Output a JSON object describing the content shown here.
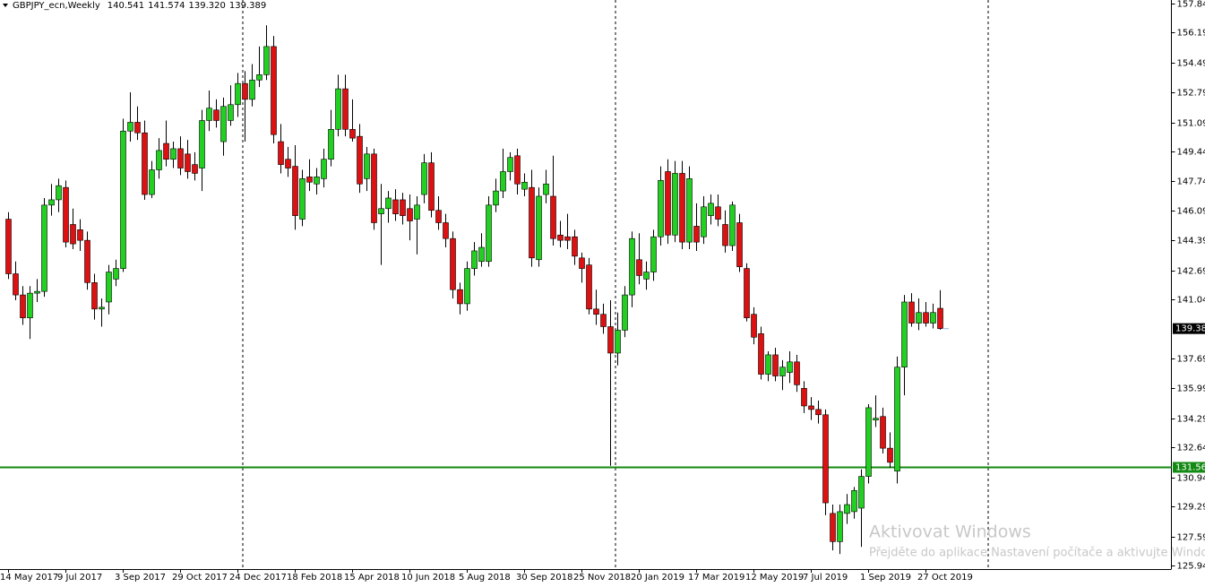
{
  "chart_data": {
    "type": "candlestick",
    "title": "GBPJPY_ecn,Weekly",
    "header_values": [
      "140.541",
      "141.574",
      "139.320",
      "139.389"
    ],
    "categories": [
      "14 May 2017",
      null,
      null,
      null,
      null,
      null,
      null,
      null,
      "9 Jul 2017",
      null,
      null,
      null,
      null,
      null,
      null,
      null,
      "3 Sep 2017",
      null,
      null,
      null,
      null,
      null,
      null,
      null,
      "29 Oct 2017",
      null,
      null,
      null,
      null,
      null,
      null,
      null,
      "24 Dec 2017",
      null,
      null,
      null,
      null,
      null,
      null,
      null,
      "18 Feb 2018",
      null,
      null,
      null,
      null,
      null,
      null,
      null,
      "15 Apr 2018",
      null,
      null,
      null,
      null,
      null,
      null,
      null,
      "10 Jun 2018",
      null,
      null,
      null,
      null,
      null,
      null,
      null,
      "5 Aug 2018",
      null,
      null,
      null,
      null,
      null,
      null,
      null,
      "30 Sep 2018",
      null,
      null,
      null,
      null,
      null,
      null,
      null,
      "25 Nov 2018",
      null,
      null,
      null,
      null,
      null,
      null,
      null,
      "20 Jan 2019",
      null,
      null,
      null,
      null,
      null,
      null,
      null,
      "17 Mar 2019",
      null,
      null,
      null,
      null,
      null,
      null,
      null,
      "12 May 2019",
      null,
      null,
      null,
      null,
      null,
      null,
      null,
      "7 Jul 2019",
      null,
      null,
      null,
      null,
      null,
      null,
      null,
      "1 Sep 2019",
      null,
      null,
      null,
      null,
      null,
      null,
      null,
      "27 Oct 2019",
      null,
      null
    ],
    "values": [
      [
        145.6,
        146.0,
        142.2,
        142.5
      ],
      [
        142.5,
        143.2,
        141.0,
        141.3
      ],
      [
        141.3,
        141.8,
        139.6,
        140.0
      ],
      [
        140.0,
        141.8,
        138.8,
        141.4
      ],
      [
        141.4,
        142.2,
        140.9,
        141.5
      ],
      [
        141.5,
        146.8,
        141.2,
        146.4
      ],
      [
        146.4,
        147.6,
        145.8,
        146.7
      ],
      [
        146.7,
        147.9,
        146.0,
        147.5
      ],
      [
        147.4,
        147.8,
        144.0,
        144.3
      ],
      [
        145.3,
        146.2,
        143.9,
        144.2
      ],
      [
        145.0,
        145.6,
        143.8,
        144.4
      ],
      [
        144.4,
        144.9,
        141.6,
        142.0
      ],
      [
        142.0,
        142.5,
        139.9,
        140.5
      ],
      [
        140.5,
        141.1,
        139.5,
        140.6
      ],
      [
        140.9,
        143.0,
        140.2,
        142.6
      ],
      [
        142.2,
        143.3,
        141.8,
        142.8
      ],
      [
        142.8,
        151.3,
        142.6,
        150.6
      ],
      [
        150.6,
        152.8,
        150.0,
        151.1
      ],
      [
        151.1,
        152.0,
        150.1,
        150.5
      ],
      [
        150.5,
        151.2,
        146.7,
        147.0
      ],
      [
        147.0,
        148.9,
        146.8,
        148.4
      ],
      [
        148.4,
        150.2,
        147.9,
        149.5
      ],
      [
        149.9,
        151.2,
        148.6,
        149.0
      ],
      [
        149.0,
        150.0,
        148.5,
        149.6
      ],
      [
        149.6,
        150.3,
        148.1,
        148.5
      ],
      [
        149.3,
        150.1,
        147.9,
        148.3
      ],
      [
        148.7,
        149.4,
        147.8,
        148.2
      ],
      [
        148.5,
        151.8,
        147.2,
        151.2
      ],
      [
        151.2,
        152.9,
        150.6,
        151.9
      ],
      [
        151.8,
        152.4,
        150.8,
        151.2
      ],
      [
        150.0,
        152.5,
        149.2,
        152.0
      ],
      [
        151.2,
        153.2,
        150.9,
        152.1
      ],
      [
        152.1,
        153.9,
        151.4,
        153.3
      ],
      [
        153.3,
        154.0,
        150.0,
        152.4
      ],
      [
        152.4,
        154.4,
        152.0,
        153.5
      ],
      [
        153.5,
        155.4,
        153.1,
        153.8
      ],
      [
        153.8,
        156.6,
        153.5,
        155.4
      ],
      [
        155.4,
        156.0,
        149.9,
        150.4
      ],
      [
        150.0,
        151.0,
        148.2,
        148.7
      ],
      [
        149.0,
        149.7,
        148.0,
        148.5
      ],
      [
        148.6,
        149.8,
        145.0,
        145.8
      ],
      [
        145.6,
        148.4,
        145.2,
        147.9
      ],
      [
        148.0,
        149.0,
        147.2,
        147.7
      ],
      [
        147.6,
        148.5,
        147.0,
        148.0
      ],
      [
        147.9,
        149.6,
        147.4,
        149.0
      ],
      [
        149.0,
        151.8,
        148.6,
        150.7
      ],
      [
        150.7,
        153.8,
        150.3,
        153.0
      ],
      [
        153.0,
        153.8,
        150.3,
        150.7
      ],
      [
        150.7,
        152.4,
        150.0,
        150.2
      ],
      [
        150.3,
        151.0,
        147.1,
        147.6
      ],
      [
        147.9,
        149.7,
        147.2,
        149.3
      ],
      [
        149.3,
        149.6,
        145.0,
        145.4
      ],
      [
        145.9,
        147.6,
        143.0,
        146.2
      ],
      [
        146.2,
        147.2,
        145.4,
        146.8
      ],
      [
        146.7,
        147.3,
        145.5,
        145.9
      ],
      [
        146.7,
        147.1,
        145.3,
        145.8
      ],
      [
        146.2,
        147.0,
        144.4,
        145.5
      ],
      [
        145.6,
        146.9,
        143.6,
        146.4
      ],
      [
        147.0,
        149.3,
        146.5,
        148.8
      ],
      [
        148.8,
        149.4,
        145.7,
        146.1
      ],
      [
        146.1,
        146.9,
        145.0,
        145.4
      ],
      [
        145.4,
        145.9,
        144.0,
        144.5
      ],
      [
        144.5,
        144.9,
        141.1,
        141.6
      ],
      [
        141.6,
        142.0,
        140.2,
        140.8
      ],
      [
        140.8,
        143.2,
        140.4,
        142.8
      ],
      [
        142.8,
        144.3,
        142.4,
        143.8
      ],
      [
        143.2,
        144.8,
        142.9,
        144.0
      ],
      [
        143.2,
        146.9,
        142.9,
        146.4
      ],
      [
        146.4,
        147.9,
        146.0,
        147.2
      ],
      [
        147.2,
        149.6,
        146.8,
        148.3
      ],
      [
        148.3,
        149.4,
        147.8,
        149.1
      ],
      [
        149.2,
        149.6,
        147.0,
        147.6
      ],
      [
        147.3,
        148.2,
        146.9,
        147.7
      ],
      [
        147.4,
        148.4,
        142.9,
        143.4
      ],
      [
        143.3,
        147.4,
        142.9,
        146.9
      ],
      [
        147.0,
        148.4,
        146.5,
        147.6
      ],
      [
        146.9,
        149.2,
        144.1,
        144.5
      ],
      [
        144.7,
        145.5,
        144.0,
        144.4
      ],
      [
        144.6,
        145.9,
        143.9,
        144.4
      ],
      [
        144.6,
        145.0,
        143.0,
        143.5
      ],
      [
        143.4,
        143.7,
        142.0,
        142.8
      ],
      [
        143.0,
        143.4,
        140.2,
        140.5
      ],
      [
        140.5,
        141.6,
        139.6,
        140.2
      ],
      [
        140.2,
        140.8,
        139.1,
        139.5
      ],
      [
        139.5,
        141.0,
        131.6,
        138.0
      ],
      [
        138.0,
        140.3,
        137.3,
        139.3
      ],
      [
        139.3,
        141.8,
        138.9,
        141.3
      ],
      [
        141.3,
        144.9,
        140.6,
        144.5
      ],
      [
        143.3,
        144.8,
        141.9,
        142.4
      ],
      [
        142.2,
        143.2,
        141.6,
        142.6
      ],
      [
        142.6,
        145.0,
        142.1,
        144.6
      ],
      [
        144.6,
        148.6,
        144.1,
        147.8
      ],
      [
        148.3,
        149.0,
        144.2,
        144.7
      ],
      [
        144.7,
        148.9,
        144.3,
        148.2
      ],
      [
        148.2,
        148.9,
        143.9,
        144.3
      ],
      [
        144.3,
        148.6,
        143.9,
        147.9
      ],
      [
        145.2,
        146.5,
        143.8,
        144.3
      ],
      [
        144.6,
        146.9,
        144.2,
        146.3
      ],
      [
        145.8,
        147.0,
        145.3,
        146.5
      ],
      [
        146.3,
        147.0,
        145.2,
        145.6
      ],
      [
        145.3,
        146.1,
        143.7,
        144.1
      ],
      [
        144.1,
        146.6,
        143.8,
        146.4
      ],
      [
        145.4,
        145.9,
        142.6,
        142.9
      ],
      [
        142.8,
        143.1,
        139.8,
        140.0
      ],
      [
        140.2,
        140.6,
        138.5,
        138.9
      ],
      [
        139.1,
        139.5,
        136.5,
        136.8
      ],
      [
        136.8,
        138.1,
        136.4,
        137.9
      ],
      [
        137.9,
        138.3,
        136.4,
        136.7
      ],
      [
        136.7,
        137.6,
        135.9,
        137.2
      ],
      [
        136.9,
        138.1,
        136.3,
        137.5
      ],
      [
        137.5,
        137.9,
        135.8,
        136.2
      ],
      [
        136.0,
        136.4,
        134.6,
        135.0
      ],
      [
        135.0,
        135.5,
        134.2,
        134.8
      ],
      [
        134.8,
        135.3,
        134.0,
        134.5
      ],
      [
        134.5,
        134.8,
        128.8,
        129.5
      ],
      [
        128.9,
        129.4,
        126.8,
        127.3
      ],
      [
        127.3,
        129.4,
        126.6,
        129.0
      ],
      [
        128.9,
        130.0,
        128.3,
        129.4
      ],
      [
        129.0,
        130.4,
        128.6,
        130.2
      ],
      [
        129.2,
        131.4,
        127.0,
        131.0
      ],
      [
        131.0,
        135.1,
        130.6,
        134.9
      ],
      [
        134.2,
        135.6,
        133.8,
        134.3
      ],
      [
        134.4,
        134.9,
        132.3,
        132.6
      ],
      [
        132.6,
        133.5,
        131.5,
        131.8
      ],
      [
        131.3,
        137.8,
        130.6,
        137.2
      ],
      [
        137.2,
        141.3,
        135.6,
        140.9
      ],
      [
        140.9,
        141.4,
        139.5,
        139.7
      ],
      [
        139.7,
        141.1,
        139.3,
        140.3
      ],
      [
        140.3,
        140.9,
        139.5,
        139.7
      ],
      [
        139.7,
        140.8,
        139.4,
        140.3
      ],
      [
        140.541,
        141.574,
        139.32,
        139.389
      ]
    ],
    "up_color": "#22d022",
    "down_color": "#dd1111",
    "ylim": [
      125.74,
      158.04
    ],
    "yticks": [
      157.84,
      156.19,
      154.49,
      152.79,
      151.09,
      149.44,
      147.74,
      146.09,
      144.39,
      142.69,
      141.04,
      137.69,
      135.99,
      134.29,
      132.64,
      130.94,
      129.29,
      127.59,
      125.94
    ],
    "hline": {
      "value": 131.56,
      "color": "#138a13"
    },
    "last_price": 139.389
  },
  "overlay": {
    "title": "Aktivovat Windows",
    "text": "Přejděte do aplikace Nastavení počítače a aktivujte Windows."
  }
}
